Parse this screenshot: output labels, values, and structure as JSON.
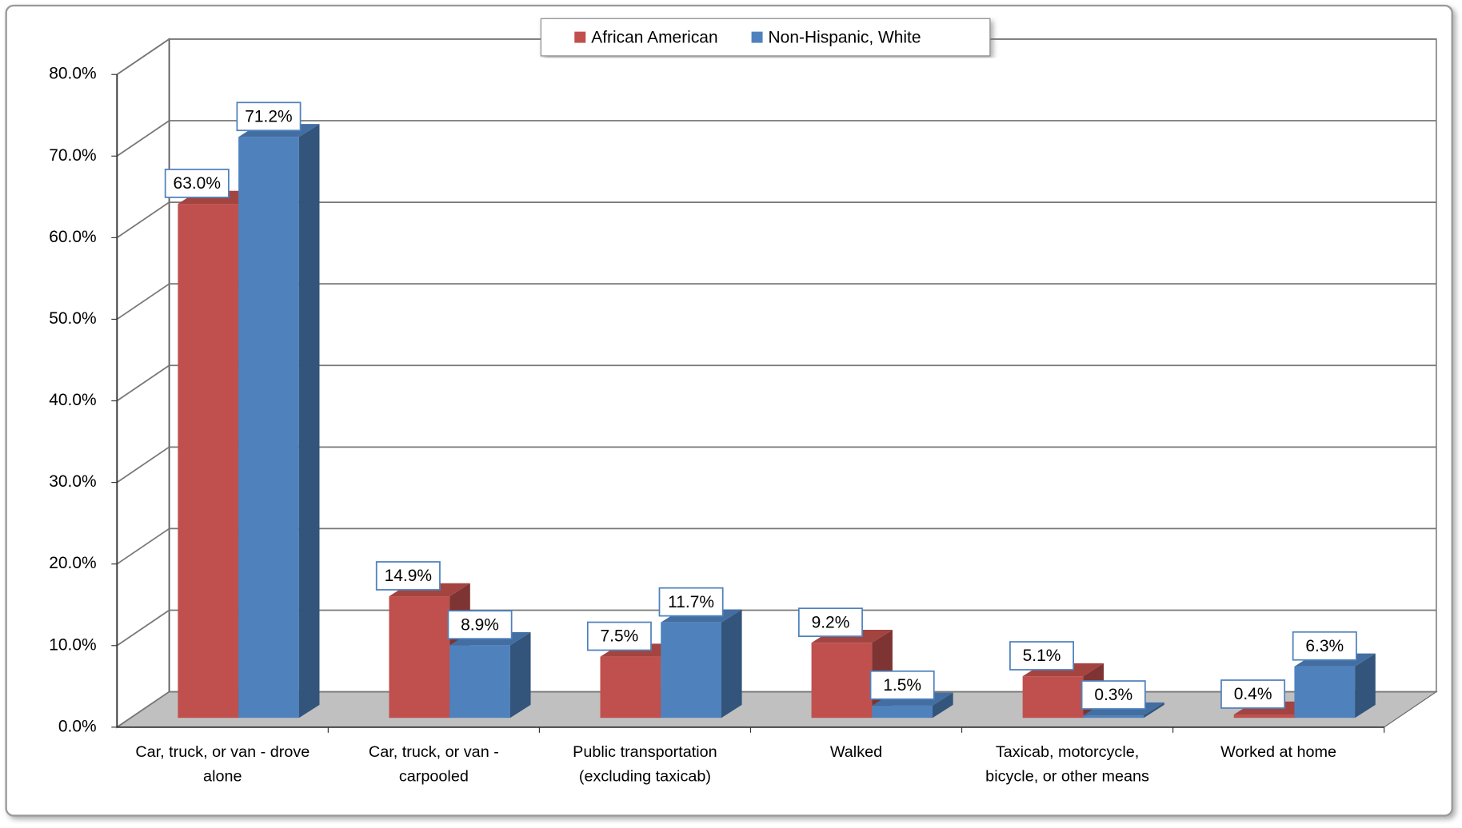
{
  "chart_data": {
    "type": "bar3d",
    "categories": [
      "Car, truck, or van - drove alone",
      "Car, truck, or van - carpooled",
      "Public transportation (excluding taxicab)",
      "Walked",
      "Taxicab, motorcycle, bicycle,  or other means",
      "Worked at home"
    ],
    "series": [
      {
        "name": "African American",
        "color": "#c0504d",
        "values": [
          63.0,
          14.9,
          7.5,
          9.2,
          5.1,
          0.4
        ],
        "value_labels": [
          "63.0%",
          "14.9%",
          "7.5%",
          "9.2%",
          "5.1%",
          "0.4%"
        ]
      },
      {
        "name": "Non-Hispanic, White",
        "color": "#4f81bd",
        "values": [
          71.2,
          8.9,
          11.7,
          1.5,
          0.3,
          6.3
        ],
        "value_labels": [
          "71.2%",
          "8.9%",
          "11.7%",
          "1.5%",
          "0.3%",
          "6.3%"
        ]
      }
    ],
    "ylim": [
      0,
      80
    ],
    "yticks": [
      {
        "value": 0,
        "label": "0.0%"
      },
      {
        "value": 10,
        "label": "10.0%"
      },
      {
        "value": 20,
        "label": "20.0%"
      },
      {
        "value": 30,
        "label": "30.0%"
      },
      {
        "value": 40,
        "label": "40.0%"
      },
      {
        "value": 50,
        "label": "50.0%"
      },
      {
        "value": 60,
        "label": "60.0%"
      },
      {
        "value": 70,
        "label": "70.0%"
      },
      {
        "value": 80,
        "label": "80.0%"
      }
    ],
    "grid": true,
    "legend": "top"
  }
}
